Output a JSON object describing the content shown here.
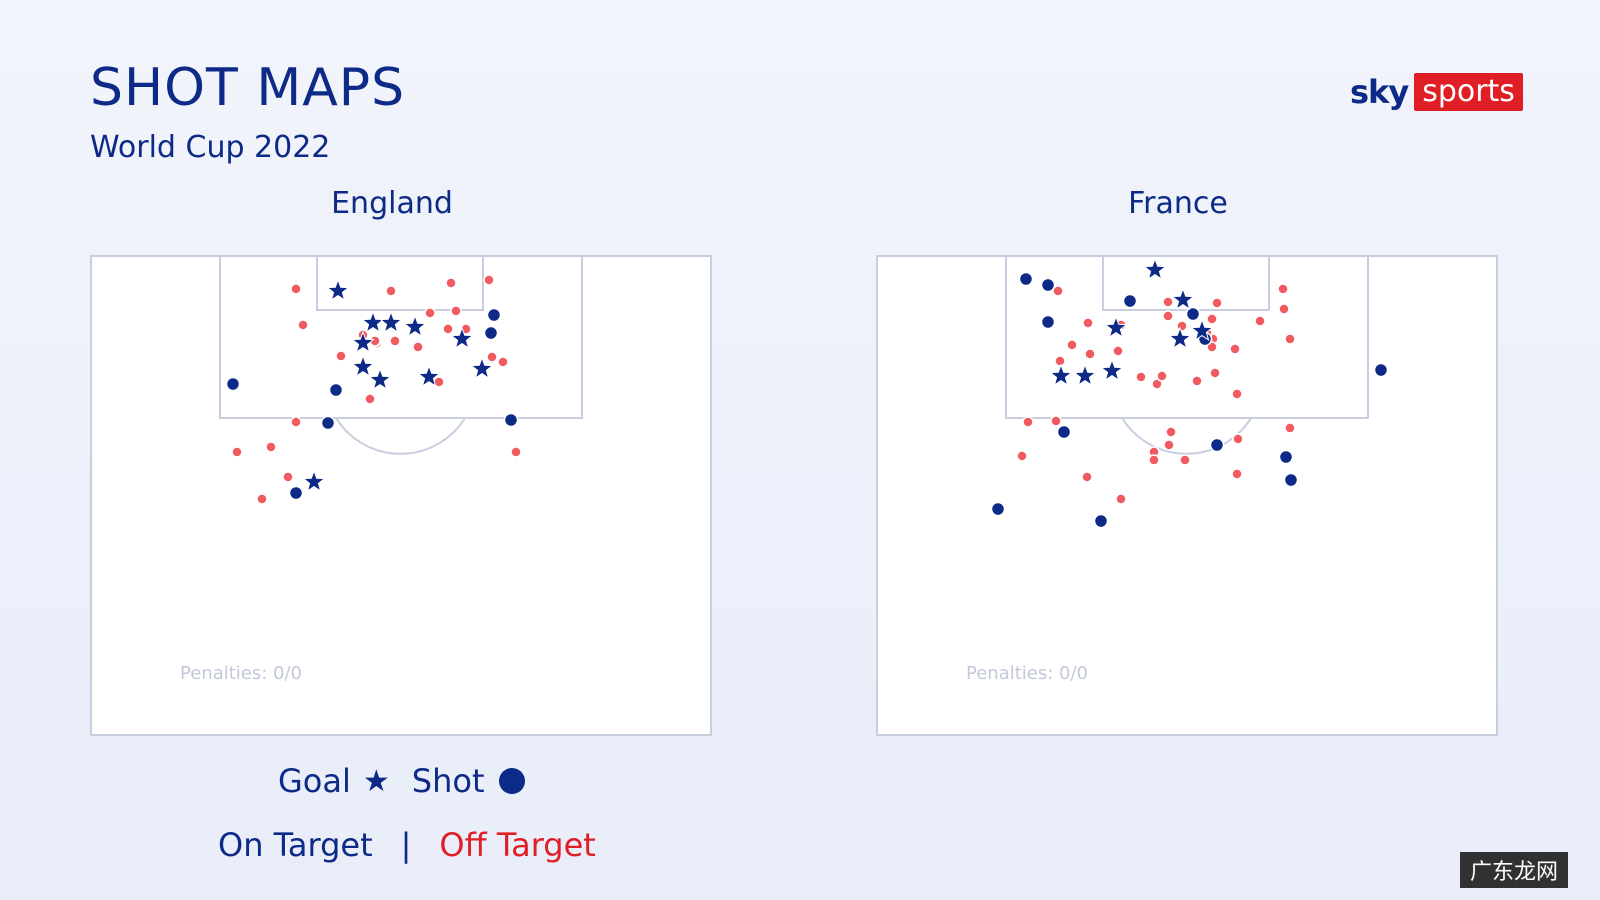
{
  "title": "SHOT MAPS",
  "subtitle": "World Cup 2022",
  "logo": {
    "sky": "sky",
    "sports": "sports"
  },
  "colors": {
    "navy": "#0c2a86",
    "red": "#e01e25",
    "shot_off": "#f15a5e",
    "pitch_line": "#c8cde0"
  },
  "legend": {
    "goal": "Goal",
    "shot": "Shot",
    "on_target": "On Target",
    "separator": "|",
    "off_target": "Off Target"
  },
  "watermark": "广东龙网",
  "chart_data": [
    {
      "type": "scatter",
      "title": "England",
      "penalties": "Penalties: 0/0",
      "grid": false,
      "goals": [
        [
          248,
          36
        ],
        [
          283,
          68
        ],
        [
          301,
          68
        ],
        [
          325,
          72
        ],
        [
          273,
          88
        ],
        [
          372,
          84
        ],
        [
          273,
          112
        ],
        [
          290,
          125
        ],
        [
          339,
          122
        ],
        [
          392,
          114
        ],
        [
          224,
          227
        ]
      ],
      "on_target": [
        [
          404,
          60
        ],
        [
          401,
          78
        ],
        [
          143,
          129
        ],
        [
          246,
          135
        ],
        [
          238,
          168
        ],
        [
          421,
          165
        ],
        [
          206,
          238
        ]
      ],
      "off_target": [
        [
          206,
          34
        ],
        [
          301,
          36
        ],
        [
          361,
          28
        ],
        [
          399,
          25
        ],
        [
          213,
          70
        ],
        [
          273,
          80
        ],
        [
          305,
          86
        ],
        [
          340,
          58
        ],
        [
          366,
          56
        ],
        [
          358,
          74
        ],
        [
          376,
          74
        ],
        [
          287,
          88
        ],
        [
          328,
          92
        ],
        [
          251,
          101
        ],
        [
          286,
          86
        ],
        [
          402,
          102
        ],
        [
          413,
          107
        ],
        [
          280,
          144
        ],
        [
          349,
          127
        ],
        [
          206,
          167
        ],
        [
          181,
          192
        ],
        [
          147,
          197
        ],
        [
          198,
          222
        ],
        [
          172,
          244
        ],
        [
          426,
          197
        ],
        [
          285,
          86
        ]
      ]
    },
    {
      "type": "scatter",
      "title": "France",
      "penalties": "Penalties: 0/0",
      "grid": false,
      "goals": [
        [
          279,
          15
        ],
        [
          307,
          45
        ],
        [
          240,
          73
        ],
        [
          326,
          76
        ],
        [
          304,
          84
        ],
        [
          185,
          121
        ],
        [
          209,
          121
        ],
        [
          236,
          116
        ]
      ],
      "on_target": [
        [
          150,
          24
        ],
        [
          172,
          30
        ],
        [
          254,
          46
        ],
        [
          317,
          59
        ],
        [
          172,
          67
        ],
        [
          329,
          84
        ],
        [
          188,
          177
        ],
        [
          341,
          190
        ],
        [
          410,
          202
        ],
        [
          415,
          225
        ],
        [
          505,
          115
        ],
        [
          122,
          254
        ],
        [
          225,
          266
        ]
      ],
      "off_target": [
        [
          182,
          36
        ],
        [
          212,
          68
        ],
        [
          196,
          90
        ],
        [
          245,
          70
        ],
        [
          242,
          96
        ],
        [
          184,
          106
        ],
        [
          214,
          99
        ],
        [
          292,
          47
        ],
        [
          292,
          61
        ],
        [
          306,
          71
        ],
        [
          336,
          64
        ],
        [
          341,
          48
        ],
        [
          337,
          84
        ],
        [
          331,
          78
        ],
        [
          336,
          92
        ],
        [
          359,
          94
        ],
        [
          384,
          66
        ],
        [
          407,
          34
        ],
        [
          408,
          54
        ],
        [
          414,
          84
        ],
        [
          265,
          122
        ],
        [
          281,
          129
        ],
        [
          286,
          121
        ],
        [
          321,
          126
        ],
        [
          339,
          118
        ],
        [
          361,
          139
        ],
        [
          152,
          167
        ],
        [
          180,
          166
        ],
        [
          295,
          177
        ],
        [
          293,
          190
        ],
        [
          278,
          197
        ],
        [
          278,
          205
        ],
        [
          362,
          184
        ],
        [
          414,
          173
        ],
        [
          309,
          205
        ],
        [
          361,
          219
        ],
        [
          146,
          201
        ],
        [
          211,
          222
        ],
        [
          245,
          244
        ]
      ]
    }
  ]
}
